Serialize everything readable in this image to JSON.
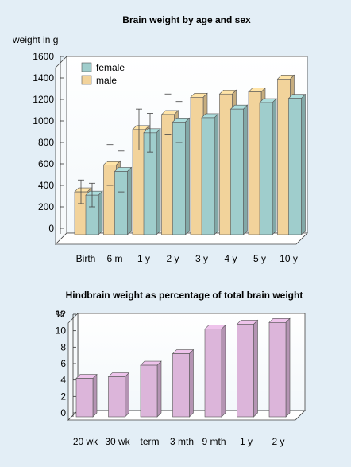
{
  "chart_data": [
    {
      "type": "bar",
      "title": "Brain weight by age and sex",
      "ylabel": "weight in g",
      "xlabel": "",
      "categories": [
        "Birth",
        "6 m",
        "1 y",
        "2 y",
        "3 y",
        "4 y",
        "5 y",
        "10 y"
      ],
      "series": [
        {
          "name": "female",
          "values": [
            310,
            530,
            890,
            990,
            1030,
            1110,
            1170,
            1210
          ],
          "color": "#9fcdcc",
          "error": [
            110,
            190,
            180,
            190,
            null,
            null,
            null,
            null
          ]
        },
        {
          "name": "male",
          "values": [
            340,
            590,
            920,
            1060,
            1220,
            1250,
            1270,
            1390
          ],
          "color": "#f2d39b",
          "error": [
            110,
            190,
            190,
            190,
            null,
            null,
            null,
            null
          ]
        }
      ],
      "ylim": [
        0,
        1600
      ],
      "yticks": [
        0,
        200,
        400,
        600,
        800,
        1000,
        1200,
        1400,
        1600
      ],
      "legend_position": "top-left",
      "grid": false
    },
    {
      "type": "bar",
      "title": "Hindbrain weight as percentage of total brain weight",
      "ylabel": "%",
      "xlabel": "",
      "categories": [
        "20 wk",
        "30 wk",
        "term",
        "3 mth",
        "9 mth",
        "1 y",
        "2 y"
      ],
      "values": [
        4.2,
        4.4,
        5.8,
        7.2,
        10.2,
        10.8,
        11.0
      ],
      "color": "#dcb5da",
      "ylim": [
        0,
        12
      ],
      "yticks": [
        0,
        2,
        4,
        6,
        8,
        10,
        12
      ],
      "grid": false
    }
  ]
}
